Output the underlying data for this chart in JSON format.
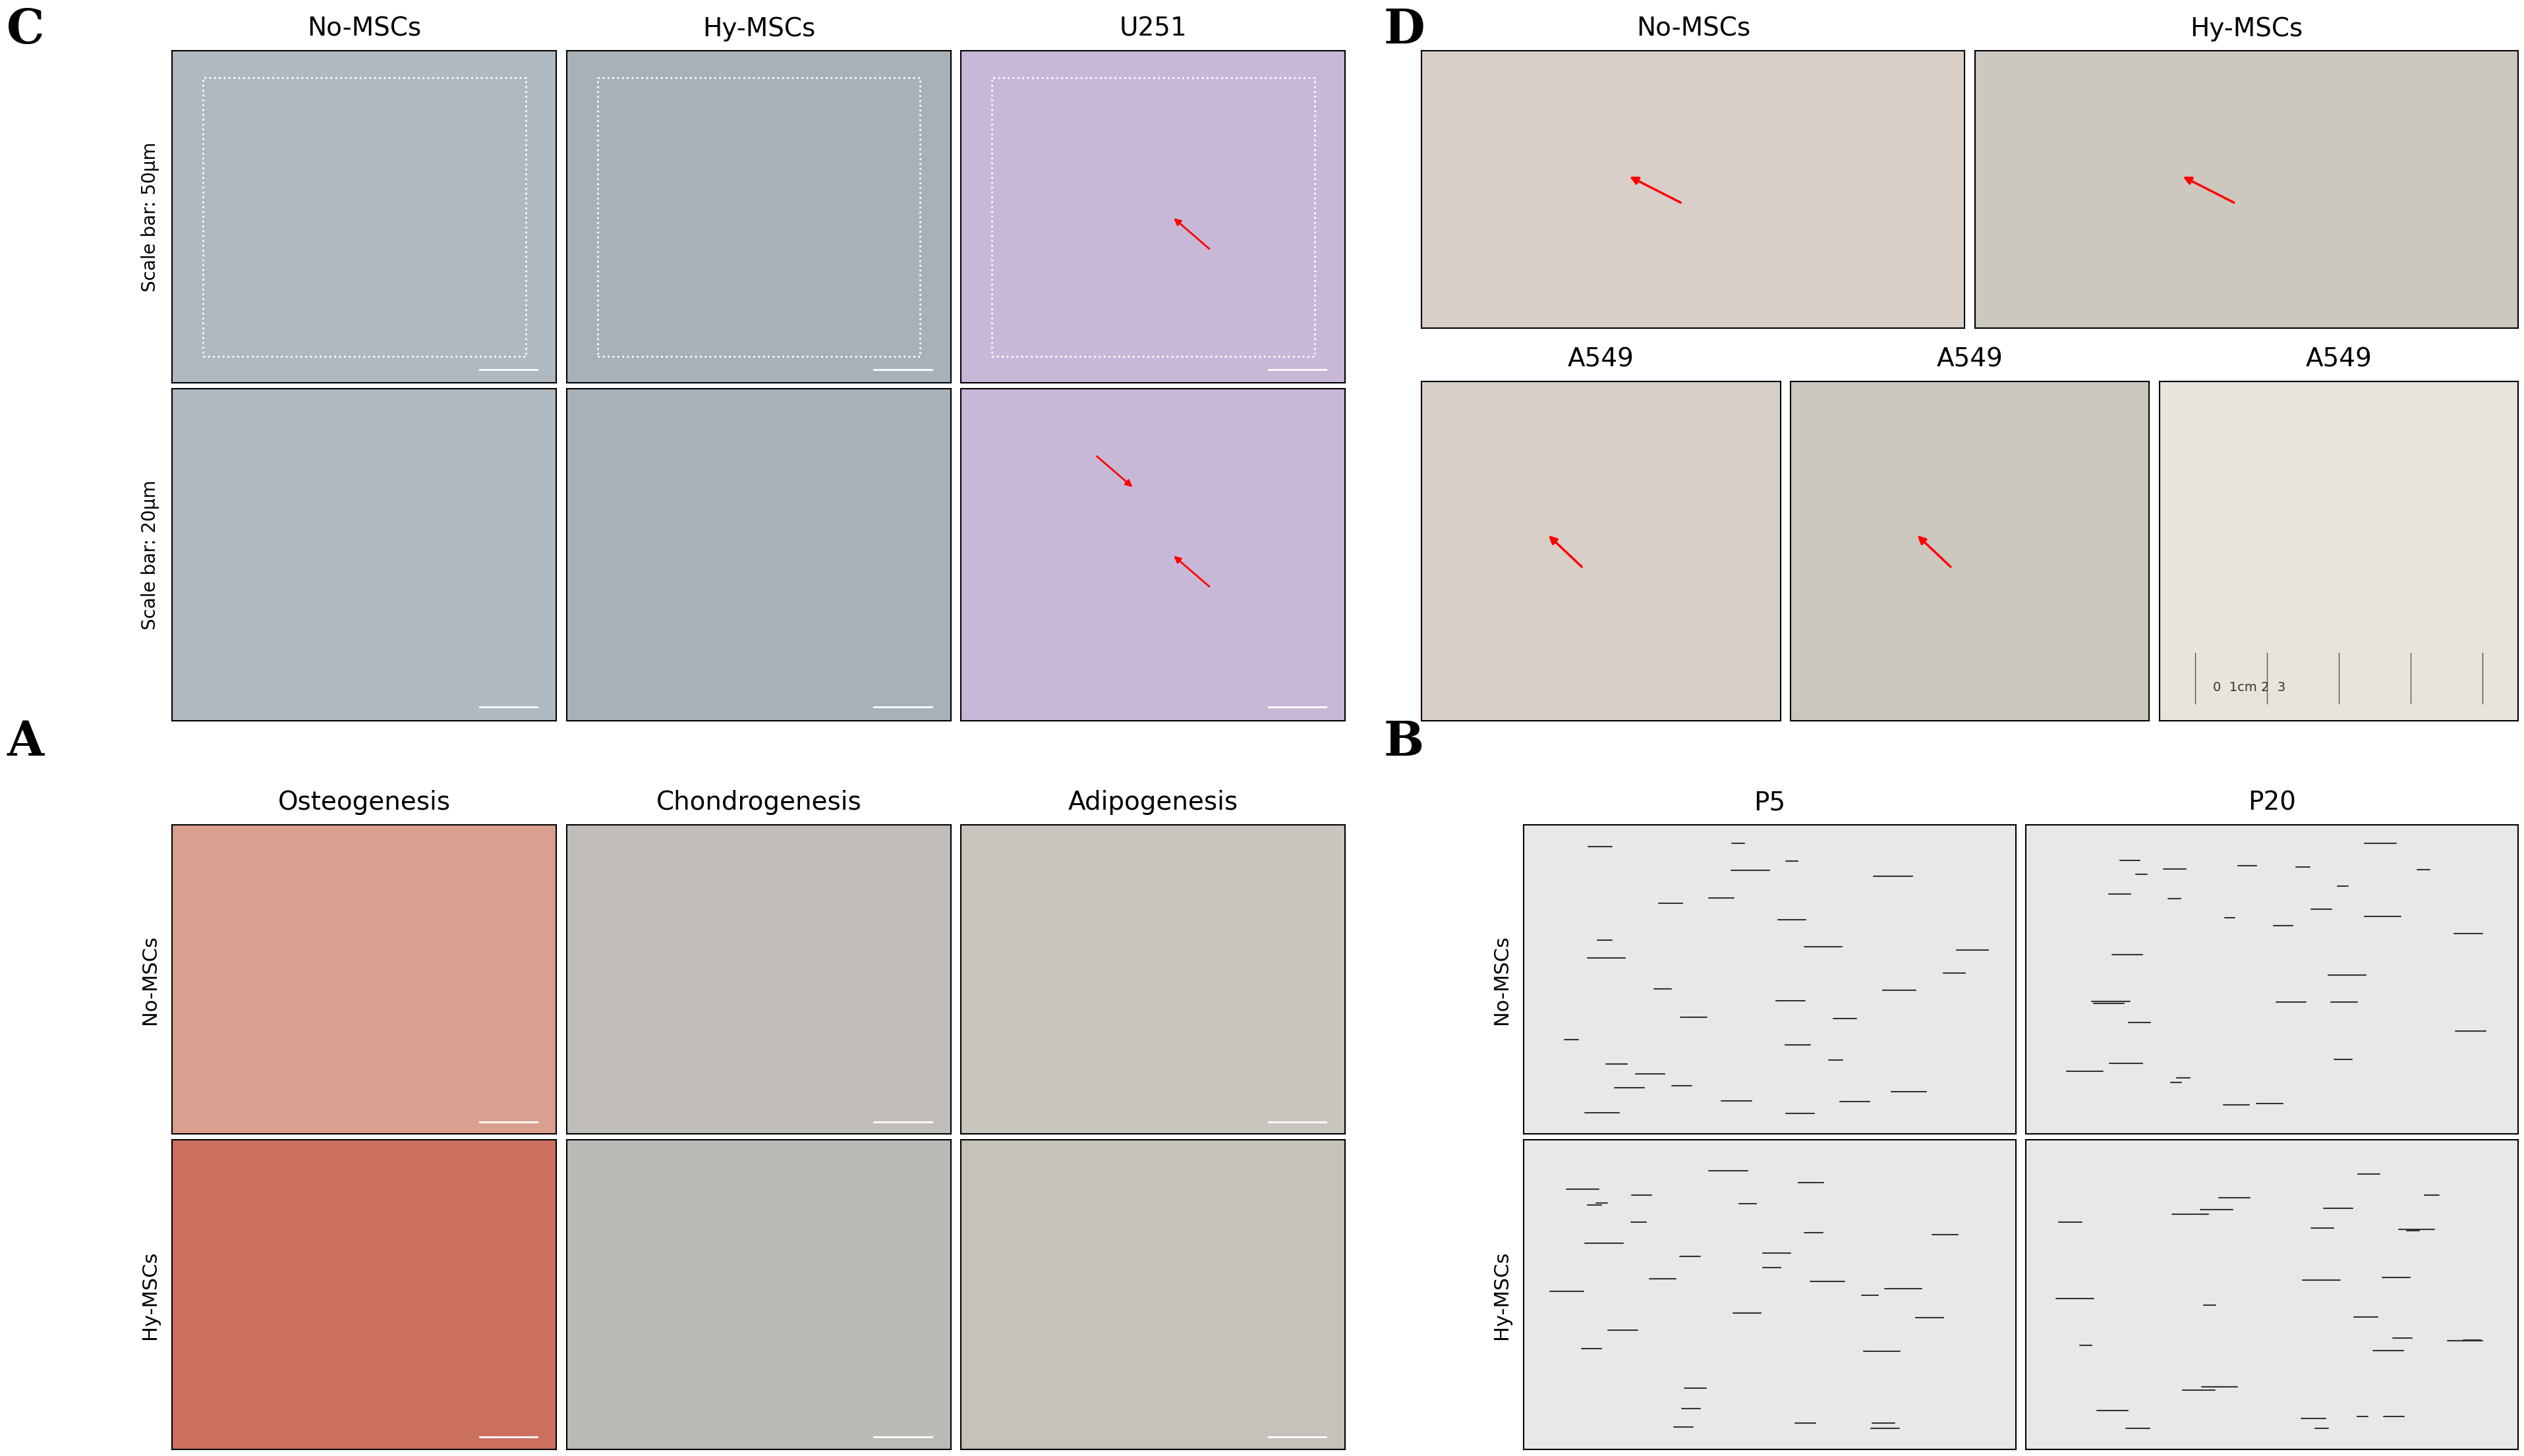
{
  "fig_width": 38.69,
  "fig_height": 22.58,
  "background_color": "#ffffff",
  "panel_label_fontsize": 52,
  "panel_label_weight": "bold",
  "panel_label_color": "#000000",
  "panel_labels": [
    "A",
    "B",
    "C",
    "D"
  ],
  "section_A": {
    "col_titles": [
      "Osteogenesis",
      "Chondrogenesis",
      "Adipogenesis"
    ],
    "row_labels": [
      "No-MSCs",
      "Hy-MSCs"
    ],
    "col_title_fontsize": 28,
    "row_label_fontsize": 22,
    "colors_row1": [
      "#d9a090",
      "#c0bdb8",
      "#c8c4be"
    ],
    "colors_row2": [
      "#cc7060",
      "#bbbab5",
      "#c5c1bb"
    ],
    "border_color": "#000000",
    "border_lw": 1.5
  },
  "section_B": {
    "col_titles": [
      "P5",
      "P20"
    ],
    "row_labels": [
      "No-MSCs",
      "Hy-MSCs"
    ],
    "col_title_fontsize": 28,
    "row_label_fontsize": 22,
    "panel_color": "#e8e8e8",
    "border_color": "#000000",
    "border_lw": 1.5
  },
  "section_C": {
    "col_titles": [
      "No-MSCs",
      "Hy-MSCs",
      "U251"
    ],
    "row_labels": [
      "Scale bar: 50μm",
      "Scale bar: 20μm"
    ],
    "col_title_fontsize": 28,
    "row_label_fontsize": 20,
    "colors_row1_col1": "#b0b8c0",
    "colors_row1_col2": "#a8b0b8",
    "colors_row1_col3": "#c8b8d8",
    "colors_row2_col1": "#b0b8c0",
    "colors_row2_col2": "#a8b0b8",
    "colors_row2_col3": "#c8b8d8",
    "border_color": "#000000",
    "border_lw": 1.5,
    "u251_color": "#c0a8cc"
  },
  "section_D": {
    "top_col_titles": [
      "No-MSCs",
      "Hy-MSCs"
    ],
    "bottom_col_titles": [
      "A549",
      "A549",
      "A549"
    ],
    "col_title_fontsize": 28,
    "mouse_color": "#d8d0c8",
    "mouse_color2": "#ccc8c0",
    "ruler_color": "#e8e4dc",
    "border_color": "#000000",
    "border_lw": 1.5
  }
}
